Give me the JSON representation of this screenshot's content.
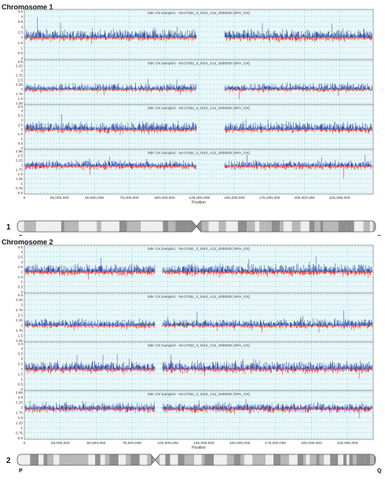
{
  "chart_data": [
    {
      "type": "line",
      "title": "Chromosome 1",
      "xlabel": "Position",
      "x_ticks": [
        "0",
        "25,000,000",
        "50,000,000",
        "75,000,000",
        "100,000,000",
        "125,000,000",
        "150,000,000",
        "175,000,000",
        "200,000,000",
        "225,000,000"
      ],
      "x_tick_values": [
        0,
        25000000,
        50000000,
        75000000,
        100000000,
        125000000,
        150000000,
        175000000,
        200000000,
        225000000
      ],
      "xlim": [
        0,
        249000000
      ],
      "gap": [
        123000000,
        143000000
      ],
      "ideogram_number": "1",
      "arm_p": "P",
      "arm_q": "Q",
      "centromere_fraction": 0.5,
      "panels": [
        {
          "name": "50K CN Sample1 - NA17052_X_NSS_A12_4000000 (SPA_CN)",
          "yticks": [
            "4.5",
            "4",
            "3.5",
            "3",
            "2.5",
            "2",
            "1.5",
            "1",
            "0.5",
            "0"
          ],
          "ylim": [
            0,
            4.5
          ],
          "baseline": 2.0,
          "amplitude": 0.9,
          "dip": 0.5
        },
        {
          "name": "50K CN Sample2 - NA17052_X_NSS_A12_4000000 (SPA_CN)",
          "yticks": [
            "3.5",
            "3.25",
            "3",
            "2.75",
            "2.5",
            "2.25",
            "2",
            "1.75",
            "1.5",
            "1.25"
          ],
          "ylim": [
            1.25,
            3.5
          ],
          "baseline": 2.0,
          "amplitude": 0.35,
          "dip": 0.2
        },
        {
          "name": "50K CN Sample3 - NA17052_X_NSS_A12_4000000 (SPA_CN)",
          "yticks": [
            "4.5",
            "4",
            "3.5",
            "3",
            "2.5",
            "2",
            "1.5",
            "1",
            "0.5",
            "0"
          ],
          "ylim": [
            0,
            4.5
          ],
          "baseline": 2.0,
          "amplitude": 0.9,
          "dip": 0.5
        },
        {
          "name": "50K CN Sample4 - NA17052_X_NSS_A12_4000000 (SPA_CN)",
          "yticks": [
            "2.85",
            "2.5",
            "2.25",
            "2",
            "1.75",
            "1.5",
            "1.25",
            "1",
            "0.75",
            "0.5"
          ],
          "ylim": [
            0.5,
            2.85
          ],
          "baseline": 2.0,
          "amplitude": 0.35,
          "dip": 0.25
        }
      ]
    },
    {
      "type": "line",
      "title": "Chromosome 2",
      "xlabel": "Position",
      "x_ticks": [
        "0",
        "25,000,000",
        "50,000,000",
        "75,000,000",
        "100,000,000",
        "125,000,000",
        "150,000,000",
        "175,000,000",
        "200,000,000",
        "225,000,000"
      ],
      "x_tick_values": [
        0,
        25000000,
        50000000,
        75000000,
        100000000,
        125000000,
        150000000,
        175000000,
        200000000,
        225000000
      ],
      "xlim": [
        0,
        243000000
      ],
      "gap": [
        91000000,
        96000000
      ],
      "ideogram_number": "2",
      "arm_p": "P",
      "arm_q": "Q",
      "centromere_fraction": 0.385,
      "panels": [
        {
          "name": "50K CN Sample1 - NA17052_X_NSS_A12_4000000 (SPA_CN)",
          "yticks": [
            "4.5",
            "4",
            "3.5",
            "3",
            "2.5",
            "2",
            "1.5",
            "1",
            "0.5",
            "0"
          ],
          "ylim": [
            0,
            4.5
          ],
          "baseline": 2.0,
          "amplitude": 0.9,
          "dip": 0.5
        },
        {
          "name": "50K CN Sample2 - NA17052_X_NSS_A12_4000000 (SPA_CN)",
          "yticks": [
            "3.5",
            "3.25",
            "3",
            "2.75",
            "2.5",
            "2.25",
            "2",
            "1.75",
            "1.5",
            "1.25"
          ],
          "ylim": [
            1.25,
            3.5
          ],
          "baseline": 2.0,
          "amplitude": 0.35,
          "dip": 0.2
        },
        {
          "name": "50K CN Sample3 - NA17052_X_NSS_A12_4000000 (SPA_CN)",
          "yticks": [
            "4.5",
            "4",
            "3.5",
            "3",
            "2.5",
            "2",
            "1.5",
            "1",
            "0.5",
            "0"
          ],
          "ylim": [
            0,
            4.5
          ],
          "baseline": 2.0,
          "amplitude": 0.9,
          "dip": 0.5
        },
        {
          "name": "50K CN Sample4 - NA17052_X_NSS_A12_4000000 (SPA_CN)",
          "yticks": [
            "2.85",
            "2.5",
            "2.25",
            "2",
            "1.75",
            "1.5",
            "1.25",
            "1",
            "0.75",
            "0.5"
          ],
          "ylim": [
            0.5,
            2.85
          ],
          "baseline": 2.0,
          "amplitude": 0.35,
          "dip": 0.25
        }
      ]
    }
  ],
  "colors": {
    "gain": "#2a3f9e",
    "loss": "#e01818",
    "grid": "#7fd0d8",
    "plot_bg": "#e9f7fa",
    "panel_border": "#8a8a8a",
    "ideogram_light": "#e0e0e0",
    "ideogram_dark": "#8f8f8f"
  }
}
